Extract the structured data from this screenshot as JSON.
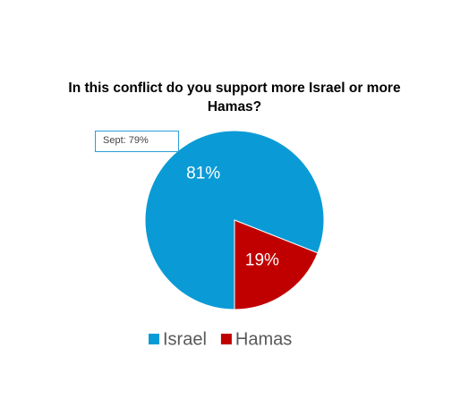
{
  "chart_data": {
    "type": "pie",
    "title": "In this conflict do you support more Israel or more Hamas?",
    "categories": [
      "Israel",
      "Hamas"
    ],
    "values": [
      81,
      19
    ],
    "value_labels": [
      "81%",
      "19%"
    ],
    "colors": [
      "#0a9bd6",
      "#c00000"
    ],
    "annotations": [
      "Sept: 79%"
    ],
    "legend": "bottom"
  }
}
